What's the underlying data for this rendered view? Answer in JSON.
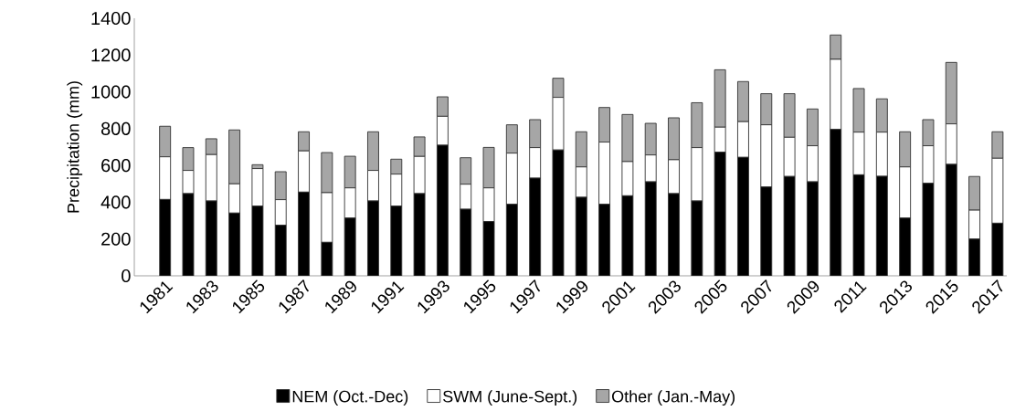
{
  "chart_data": {
    "type": "bar",
    "stacked": true,
    "ylabel": "Precipitation (mm)",
    "categories": [
      "1981",
      null,
      "1983",
      null,
      "1985",
      null,
      "1987",
      null,
      "1989",
      null,
      "1991",
      null,
      "1993",
      null,
      "1995",
      null,
      "1997",
      null,
      "1999",
      null,
      "2001",
      null,
      "2003",
      null,
      "2005",
      null,
      "2007",
      null,
      "2009",
      null,
      "2011",
      null,
      "2013",
      null,
      "2015",
      null,
      "2017"
    ],
    "series": [
      {
        "name": "NEM (Oct.-Dec)",
        "color": "#000000",
        "values": [
          415,
          447,
          407,
          341,
          379,
          275,
          455,
          182,
          314,
          407,
          379,
          447,
          710,
          362,
          295,
          389,
          531,
          684,
          427,
          389,
          435,
          511,
          447,
          407,
          672,
          644,
          483,
          540,
          511,
          796,
          549,
          541,
          314,
          503,
          606,
          200,
          286
        ]
      },
      {
        "name": "SWM (June-Sept.)",
        "color": "#ffffff",
        "values": [
          232,
          126,
          252,
          159,
          204,
          139,
          224,
          270,
          164,
          166,
          174,
          202,
          157,
          136,
          183,
          278,
          166,
          286,
          165,
          338,
          186,
          146,
          184,
          290,
          136,
          194,
          338,
          213,
          196,
          381,
          232,
          240,
          278,
          204,
          220,
          157,
          353
        ]
      },
      {
        "name": "Other (Jan.-May)",
        "color": "#a6a6a6",
        "values": [
          166,
          124,
          86,
          293,
          21,
          152,
          104,
          218,
          172,
          210,
          81,
          106,
          106,
          144,
          220,
          154,
          152,
          104,
          191,
          188,
          256,
          172,
          228,
          244,
          312,
          218,
          169,
          237,
          200,
          132,
          237,
          181,
          191,
          142,
          334,
          183,
          144
        ]
      }
    ],
    "ylim": [
      0,
      1400
    ],
    "yticks": [
      0,
      200,
      400,
      600,
      800,
      1000,
      1200,
      1400
    ],
    "grid": false,
    "legend": "bottom"
  }
}
